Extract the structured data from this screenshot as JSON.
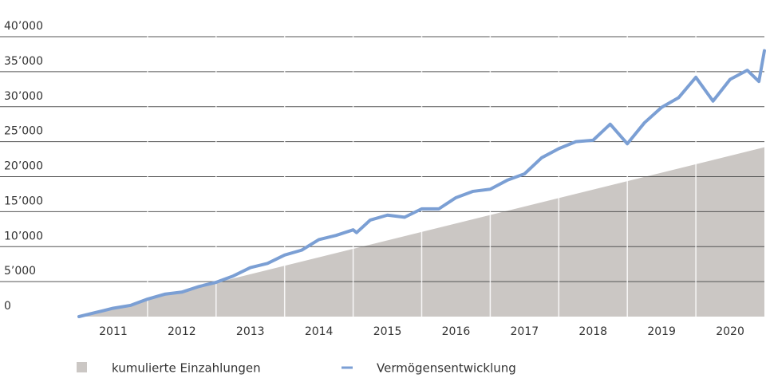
{
  "chart_data": {
    "type": "line",
    "xlim": [
      2011,
      2021
    ],
    "xticks": [
      {
        "value": 2011.5,
        "label": "2011"
      },
      {
        "value": 2012.5,
        "label": "2012"
      },
      {
        "value": 2013.5,
        "label": "2013"
      },
      {
        "value": 2014.5,
        "label": "2014"
      },
      {
        "value": 2015.5,
        "label": "2015"
      },
      {
        "value": 2016.5,
        "label": "2016"
      },
      {
        "value": 2017.5,
        "label": "2017"
      },
      {
        "value": 2018.5,
        "label": "2018"
      },
      {
        "value": 2019.5,
        "label": "2019"
      },
      {
        "value": 2020.5,
        "label": "2020"
      }
    ],
    "ylim": [
      0,
      40000
    ],
    "yticks": [
      0,
      {
        "value": 5000,
        "label": "5’000"
      },
      {
        "value": 10000,
        "label": "10’000"
      },
      {
        "value": 15000,
        "label": "15’000"
      },
      {
        "value": 20000,
        "label": "20’000"
      },
      {
        "value": 25000,
        "label": "25’000"
      },
      {
        "value": 30000,
        "label": "30’000"
      },
      {
        "value": 35000,
        "label": "35’000"
      },
      {
        "value": 40000,
        "label": "40’000"
      }
    ],
    "grid": true,
    "legend": "bottom",
    "series": [
      {
        "name": "kumulierte Einzahlungen",
        "type": "area",
        "color": "#cbc7c4",
        "x": [
          2011,
          2021
        ],
        "values": [
          0,
          24200
        ]
      },
      {
        "name": "Vermögensentwicklung",
        "type": "line",
        "color": "#7b9fd4",
        "x": [
          2011,
          2011.25,
          2011.5,
          2011.75,
          2012,
          2012.25,
          2012.5,
          2012.75,
          2013,
          2013.25,
          2013.5,
          2013.75,
          2014,
          2014.25,
          2014.5,
          2014.75,
          2015,
          2015.05,
          2015.25,
          2015.5,
          2015.75,
          2016,
          2016.25,
          2016.5,
          2016.75,
          2017,
          2017.25,
          2017.5,
          2017.75,
          2018,
          2018.25,
          2018.5,
          2018.75,
          2019,
          2019.25,
          2019.5,
          2019.75,
          2020,
          2020.25,
          2020.5,
          2020.75,
          2020.92,
          2021
        ],
        "values": [
          0,
          600,
          1200,
          1600,
          2500,
          3200,
          3500,
          4300,
          4900,
          5800,
          7000,
          7600,
          8800,
          9500,
          11000,
          11600,
          12400,
          12000,
          13800,
          14500,
          14200,
          15400,
          15400,
          17000,
          17900,
          18200,
          19500,
          20400,
          22700,
          24000,
          25000,
          25200,
          27500,
          24700,
          27700,
          29900,
          31300,
          34200,
          30800,
          33900,
          35200,
          33600,
          38000
        ]
      }
    ]
  }
}
